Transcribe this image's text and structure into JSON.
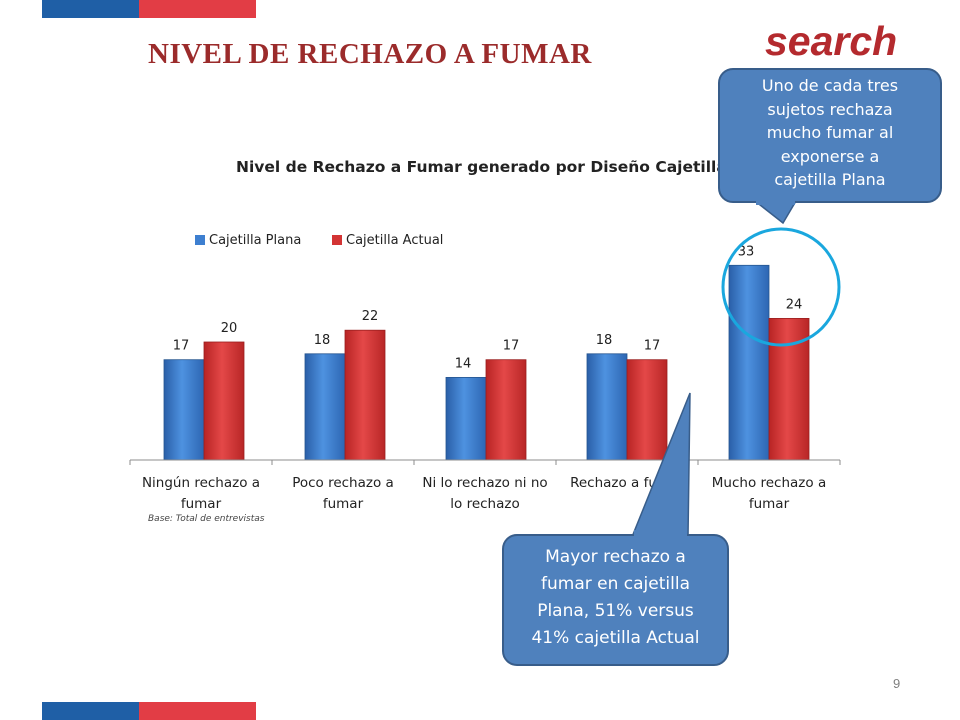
{
  "slide": {
    "title": "NIVEL DE RECHAZO A FUMAR",
    "search_text": "search",
    "page_number": "9",
    "base_note": "Base: Total  de entrevistas"
  },
  "colors": {
    "stripe_blue": "#1f5fa6",
    "stripe_red": "#e23d45",
    "plana": "#3d7fd0",
    "actual": "#d33434",
    "callout": "#4f81bd",
    "highlight_circle": "#1aa7de"
  },
  "callouts": {
    "top_right": [
      "Uno de cada tres",
      "sujetos rechaza",
      "mucho fumar al",
      "exponerse a",
      "cajetilla Plana"
    ],
    "bottom": [
      "Mayor rechazo a",
      "fumar en cajetilla",
      "Plana, 51% versus",
      "41% cajetilla Actual"
    ]
  },
  "chart_data": {
    "type": "bar",
    "title": "Nivel de Rechazo a Fumar generado por Diseño Cajetillas(",
    "legend_position": "top-left",
    "grid": false,
    "ylim": [
      0,
      40
    ],
    "categories": [
      [
        "Ningún rechazo a",
        "fumar"
      ],
      [
        "Poco rechazo a",
        "fumar"
      ],
      [
        "Ni lo rechazo ni no",
        "lo rechazo"
      ],
      [
        "Rechazo a fumar"
      ],
      [
        "Mucho rechazo a",
        "fumar"
      ]
    ],
    "series": [
      {
        "name": "Cajetilla Plana",
        "values": [
          17,
          18,
          14,
          18,
          33
        ]
      },
      {
        "name": "Cajetilla Actual",
        "values": [
          20,
          22,
          17,
          17,
          24
        ]
      }
    ]
  }
}
